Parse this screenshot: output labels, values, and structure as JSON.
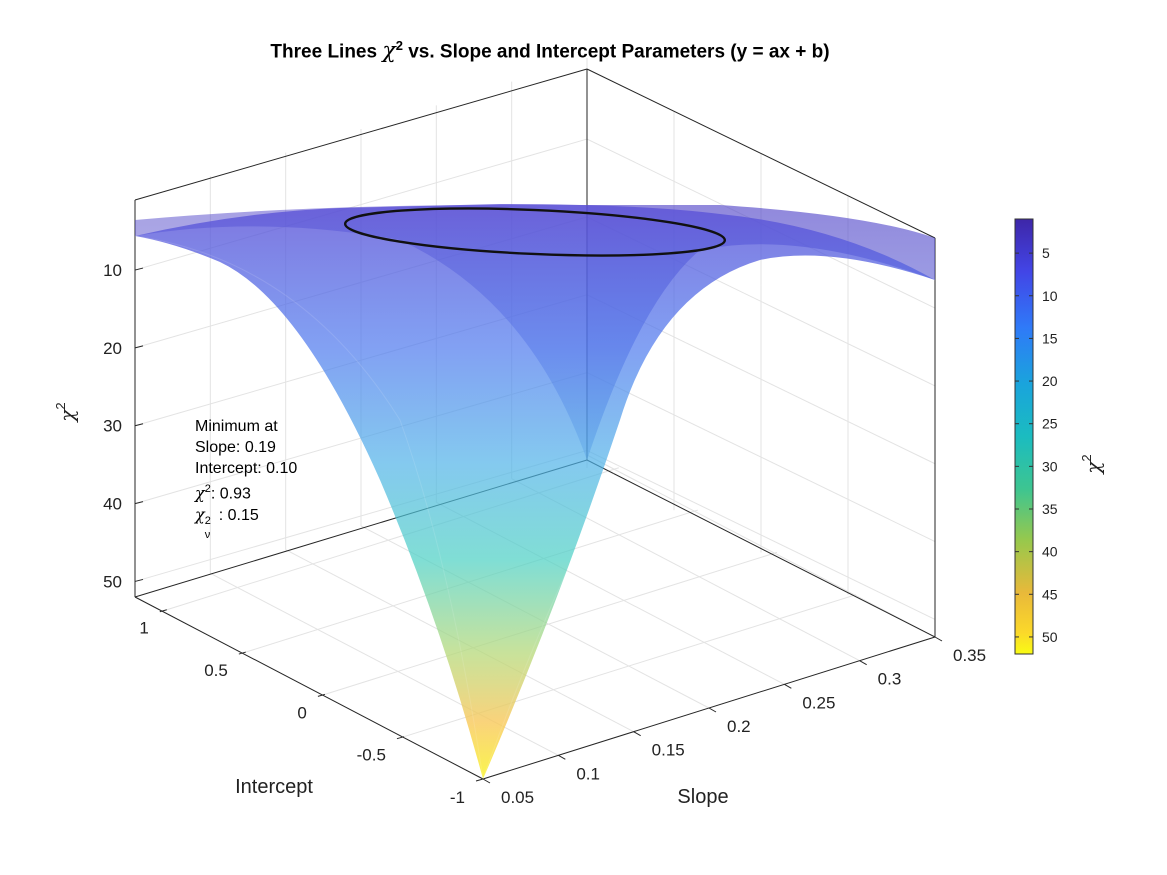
{
  "chart_data": {
    "type": "surface",
    "title_prefix": "Three Lines",
    "title_symbol": "χ",
    "title_suffix": "vs. Slope and Intercept Parameters (y = ax + b)",
    "xlabel": "Slope",
    "ylabel": "Intercept",
    "zlabel": "χ",
    "xlim": [
      0.05,
      0.35
    ],
    "ylim": [
      -1,
      1
    ],
    "zlim": [
      1,
      52
    ],
    "z_direction": "reverse",
    "x_ticks": [
      "0.05",
      "0.1",
      "0.15",
      "0.2",
      "0.25",
      "0.3",
      "0.35"
    ],
    "y_ticks": [
      "-1",
      "-0.5",
      "0",
      "0.5",
      "1"
    ],
    "z_ticks": [
      "10",
      "20",
      "30",
      "40",
      "50"
    ],
    "minimum": {
      "slope": 0.19,
      "intercept": 0.1,
      "chi2": 0.93
    },
    "contour": "ellipse around minimum",
    "colormap": "parula",
    "colorbar": {
      "label": "χ",
      "ticks": [
        "5",
        "10",
        "15",
        "20",
        "25",
        "30",
        "35",
        "40",
        "45",
        "50"
      ],
      "range": [
        1,
        52
      ]
    },
    "grid": true
  },
  "annotation": {
    "line1": "Minimum at",
    "line2": "Slope: 0.19",
    "line3": "Intercept: 0.10",
    "chi2_symbol": "χ",
    "chi2_sup": "2",
    "chi2_value": ": 0.93",
    "chinu_symbol": "χ",
    "chinu_sup": "2",
    "chinu_sub": "ν",
    "chinu_value": ": 0.15"
  },
  "colors": {
    "top": "#3e26a8",
    "mid": "#21b6c6",
    "bottom": "#f9fb0e"
  }
}
